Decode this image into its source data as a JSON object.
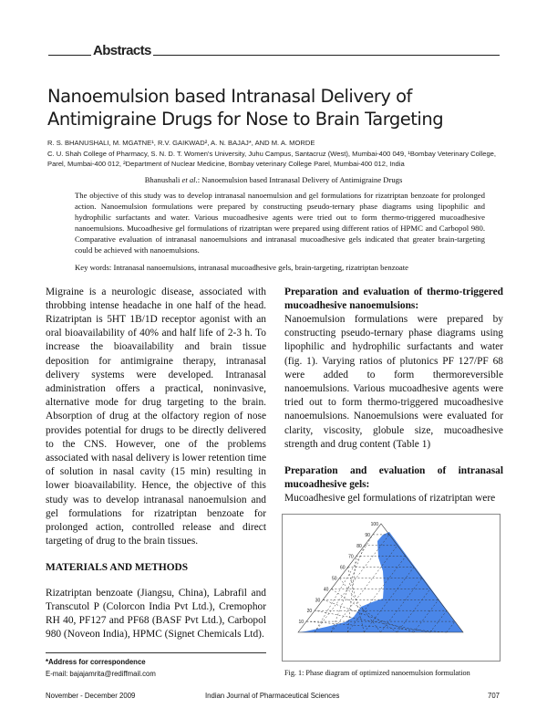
{
  "section": "Abstracts",
  "title": "Nanoemulsion based Intranasal Delivery of Antimigraine Drugs for Nose to Brain Targeting",
  "authors": "R. S. BHANUSHALI, M. MGATNE¹, R.V. GAIKWAD², A. N. BAJAJ*, AND M. A. MORDE",
  "affiliations": "C. U. Shah College of Pharmacy, S. N. D. T. Women's University, Juhu Campus, Santacruz (West), Mumbai-400 049, ¹Bombay Veterinary College, Parel, Mumbai-400 012, ²Department of Nuclear Medicine, Bombay veterinary College Parel, Mumbai-400 012, India",
  "running_head": {
    "author": "Bhanushali ",
    "etal": "et al.",
    "rest": ": Nanoemulsion based Intranasal Delivery of Antimigraine Drugs"
  },
  "abstract": "The objective of this study was to develop intranasal nanoemulsion and gel formulations for rizatriptan benzoate for prolonged action. Nanoemulsion formulations were prepared by constructing pseudo-ternary phase diagrams using lipophilic and hydrophilic surfactants and water. Various mucoadhesive agents were tried out to form thermo-triggered mucoadhesive nanoemulsions. Mucoadhesive gel formulations of rizatriptan were prepared using different ratios of HPMC and Carbopol 980. Comparative evaluation of intranasal nanoemulsions and intranasal mucoadhesive gels indicated that greater brain-targeting could be achieved with nanoemulsions.",
  "keywords": "Key words: Intranasal nanoemulsions, intranasal mucoadhesive gels, brain-targeting, rizatriptan benzoate",
  "left_column": {
    "intro": "Migraine is a neurologic disease, associated with throbbing intense headache in one half of the head. Rizatriptan is 5HT 1B/1D receptor agonist with an oral bioavailability of 40% and half life of 2-3 h. To increase the bioavailability and brain tissue deposition for antimigraine therapy, intranasal delivery systems were developed. Intranasal administration offers a practical, noninvasive, alternative mode for drug targeting to the brain. Absorption of drug at the olfactory region of nose provides potential for drugs to be directly delivered to the CNS. However, one of the problems associated with nasal delivery is lower retention time of solution in nasal cavity (15 min) resulting in lower bioavailability. Hence, the objective of this study was to develop intranasal nanoemulsion and gel formulations for rizatriptan benzoate for prolonged action, controlled release and direct targeting of drug to the brain tissues.",
    "methods_heading": "MATERIALS AND METHODS",
    "methods": "Rizatriptan benzoate (Jiangsu, China), Labrafil and Transcutol P (Colorcon India Pvt Ltd.), Cremophor RH 40, PF127 and PF68 (BASF Pvt Ltd.), Carbopol 980 (Noveon India), HPMC (Signet Chemicals Ltd)."
  },
  "right_column": {
    "heading1": "Preparation and evaluation of thermo-triggered mucoadhesive nanoemulsions:",
    "para1": "Nanoemulsion formulations were prepared by constructing pseudo-ternary phase diagrams using lipophilic and hydrophilic surfactants and water (fig. 1). Varying ratios of plutonics PF 127/PF 68 were added to form thermoreversible nanoemulsions. Various mucoadhesive agents were tried out to form thermo-triggered mucoadhesive nanoemulsions. Nanoemulsions were evaluated for clarity, viscosity, globule size, mucoadhesive strength and drug content (Table 1)",
    "heading2": "Preparation and evaluation of intranasal mucoadhesive gels:",
    "para2": "Mucoadhesive gel formulations of rizatriptan were"
  },
  "figure": {
    "caption": "Fig. 1: Phase diagram of optimized nanoemulsion formulation",
    "left_ticks": [
      "10",
      "20",
      "30",
      "40",
      "50",
      "60",
      "70",
      "80",
      "90",
      "100"
    ],
    "region_color": "#4a86e8"
  },
  "correspondence": {
    "label": "*Address for correspondence",
    "email": "E-mail: bajajamrita@rediffmail.com"
  },
  "footer": {
    "date": "November - December 2009",
    "journal": "Indian Journal of Pharmaceutical Sciences",
    "page": "707"
  }
}
